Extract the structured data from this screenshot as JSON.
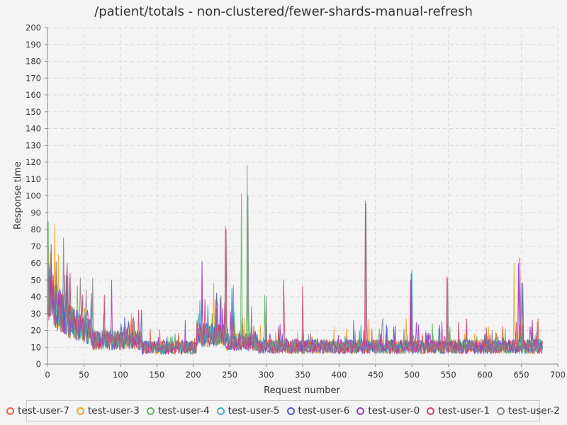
{
  "chart_data": {
    "type": "line",
    "title": "/patient/totals - non-clustered/fewer-shards-manual-refresh",
    "xlabel": "Request number",
    "ylabel": "Response time",
    "xlim": [
      0,
      700
    ],
    "ylim": [
      0,
      200
    ],
    "x_ticks": [
      0,
      50,
      100,
      150,
      200,
      250,
      300,
      350,
      400,
      450,
      500,
      550,
      600,
      650,
      700
    ],
    "y_ticks": [
      0,
      10,
      20,
      30,
      40,
      50,
      60,
      70,
      80,
      90,
      100,
      110,
      120,
      130,
      140,
      150,
      160,
      170,
      180,
      190,
      200
    ],
    "grid": true,
    "legend_position": "bottom",
    "request_count": 680,
    "series": [
      {
        "name": "test-user-7",
        "color": "#f0643c",
        "spikes": [
          [
            5,
            52
          ],
          [
            22,
            40
          ],
          [
            118,
            28
          ],
          [
            232,
            33
          ],
          [
            445,
            21
          ],
          [
            498,
            30
          ],
          [
            642,
            18
          ]
        ]
      },
      {
        "name": "test-user-3",
        "color": "#f5a623",
        "spikes": [
          [
            3,
            55
          ],
          [
            15,
            65
          ],
          [
            30,
            51
          ],
          [
            115,
            30
          ],
          [
            228,
            48
          ],
          [
            270,
            27
          ],
          [
            410,
            20
          ],
          [
            492,
            27
          ],
          [
            605,
            22
          ],
          [
            640,
            60
          ]
        ]
      },
      {
        "name": "test-user-4",
        "color": "#5cb85c",
        "spikes": [
          [
            8,
            45
          ],
          [
            20,
            41
          ],
          [
            205,
            26
          ],
          [
            266,
            101
          ],
          [
            274,
            118
          ],
          [
            298,
            41
          ],
          [
            455,
            21
          ],
          [
            528,
            24
          ],
          [
            552,
            22
          ]
        ]
      },
      {
        "name": "test-user-5",
        "color": "#46b0c8",
        "spikes": [
          [
            2,
            44
          ],
          [
            12,
            40
          ],
          [
            28,
            52
          ],
          [
            220,
            35
          ],
          [
            255,
            47
          ],
          [
            500,
            56
          ],
          [
            650,
            48
          ]
        ]
      },
      {
        "name": "test-user-6",
        "color": "#4a5fc8",
        "spikes": [
          [
            10,
            38
          ],
          [
            26,
            53
          ],
          [
            60,
            42
          ],
          [
            212,
            39
          ],
          [
            253,
            45
          ],
          [
            475,
            22
          ],
          [
            499,
            54
          ],
          [
            600,
            18
          ],
          [
            652,
            48
          ]
        ]
      },
      {
        "name": "test-user-0",
        "color": "#a040c8",
        "spikes": [
          [
            5,
            71
          ],
          [
            40,
            32
          ],
          [
            88,
            50
          ],
          [
            212,
            61
          ],
          [
            240,
            33
          ],
          [
            420,
            26
          ],
          [
            498,
            50
          ],
          [
            646,
            60
          ]
        ]
      },
      {
        "name": "test-user-1",
        "color": "#d04070",
        "spikes": [
          [
            12,
            55
          ],
          [
            27,
            60
          ],
          [
            45,
            29
          ],
          [
            78,
            41
          ],
          [
            125,
            32
          ],
          [
            245,
            80
          ],
          [
            324,
            50
          ],
          [
            350,
            46
          ],
          [
            436,
            97
          ],
          [
            499,
            50
          ],
          [
            548,
            52
          ],
          [
            648,
            63
          ],
          [
            665,
            26
          ]
        ]
      },
      {
        "name": "test-user-2",
        "color": "#888888",
        "spikes": [
          [
            0,
            60
          ],
          [
            22,
            75
          ],
          [
            62,
            51
          ],
          [
            244,
            82
          ],
          [
            275,
            100
          ],
          [
            280,
            34
          ],
          [
            300,
            40
          ],
          [
            437,
            95
          ],
          [
            460,
            27
          ],
          [
            549,
            51
          ],
          [
            651,
            30
          ]
        ]
      }
    ]
  }
}
